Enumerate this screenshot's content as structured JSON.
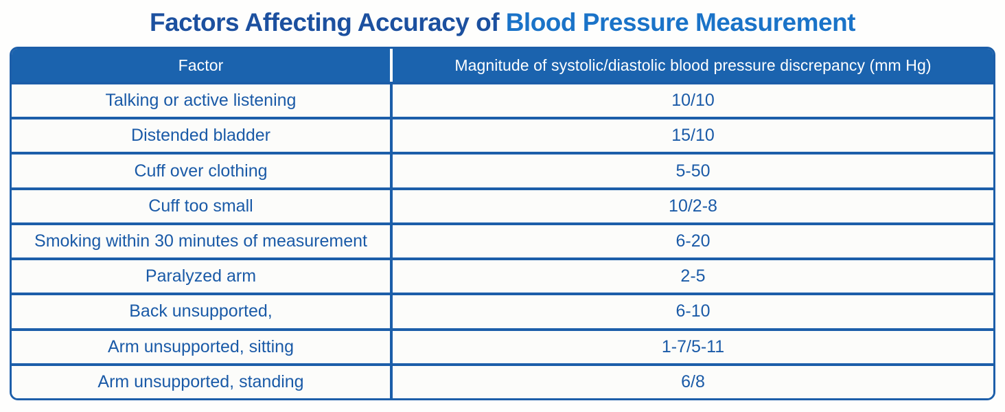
{
  "title": {
    "part1": "Factors Affecting Accuracy of",
    "part2": "Blood Pressure Measurement"
  },
  "colors": {
    "header_background": "#1b63ae",
    "table_border": "#1c5ea9",
    "cell_text": "#1a5aa7",
    "title_primary": "#1c509f",
    "title_accent": "#1a73c8",
    "header_text": "#ffffff"
  },
  "table": {
    "columns": [
      "Factor",
      "Magnitude of systolic/diastolic blood pressure discrepancy (mm Hg)"
    ],
    "rows": [
      {
        "factor": "Talking or active listening",
        "magnitude": "10/10"
      },
      {
        "factor": "Distended bladder",
        "magnitude": "15/10"
      },
      {
        "factor": "Cuff over clothing",
        "magnitude": "5-50"
      },
      {
        "factor": "Cuff too small",
        "magnitude": "10/2-8"
      },
      {
        "factor": "Smoking within 30 minutes of measurement",
        "magnitude": "6-20"
      },
      {
        "factor": "Paralyzed arm",
        "magnitude": "2-5"
      },
      {
        "factor": "Back unsupported,",
        "magnitude": "6-10"
      },
      {
        "factor": "Arm unsupported, sitting",
        "magnitude": "1-7/5-11"
      },
      {
        "factor": "Arm unsupported, standing",
        "magnitude": "6/8"
      }
    ]
  },
  "chart_data": {
    "type": "table",
    "title": "Factors Affecting Accuracy of Blood Pressure Measurement",
    "columns": [
      "Factor",
      "Magnitude of systolic/diastolic blood pressure discrepancy (mm Hg)"
    ],
    "rows": [
      [
        "Talking or active listening",
        "10/10"
      ],
      [
        "Distended bladder",
        "15/10"
      ],
      [
        "Cuff over clothing",
        "5-50"
      ],
      [
        "Cuff too small",
        "10/2-8"
      ],
      [
        "Smoking within 30 minutes of measurement",
        "6-20"
      ],
      [
        "Paralyzed arm",
        "2-5"
      ],
      [
        "Back unsupported,",
        "6-10"
      ],
      [
        "Arm unsupported, sitting",
        "1-7/5-11"
      ],
      [
        "Arm unsupported, standing",
        "6/8"
      ]
    ]
  }
}
